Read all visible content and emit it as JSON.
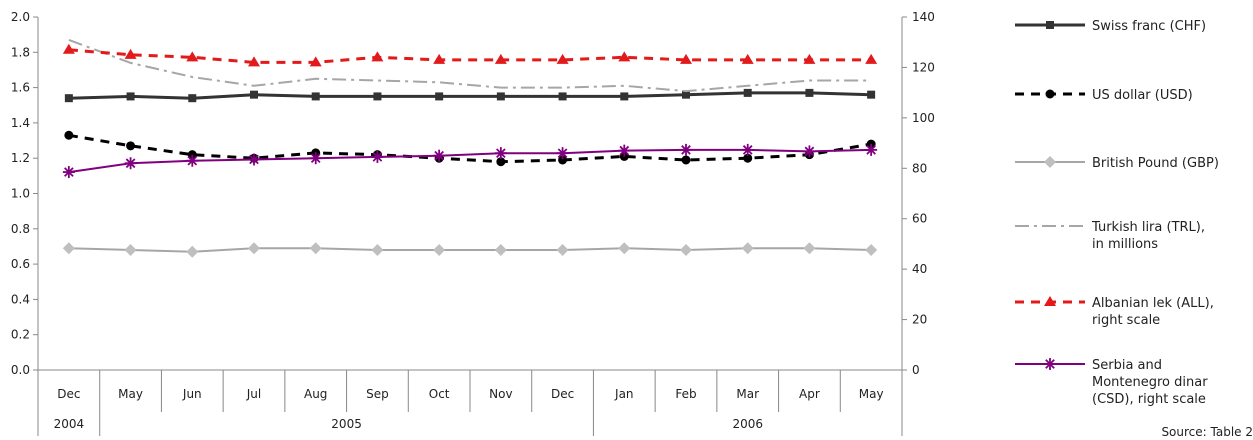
{
  "chart_data": {
    "type": "line",
    "categories": [
      "Dec",
      "May",
      "Jun",
      "Jul",
      "Aug",
      "Sep",
      "Oct",
      "Nov",
      "Dec",
      "Jan",
      "Feb",
      "Mar",
      "Apr",
      "May"
    ],
    "year_groups": [
      {
        "label": "2004",
        "start": 0,
        "end": 0
      },
      {
        "label": "2005",
        "start": 1,
        "end": 8
      },
      {
        "label": "2006",
        "start": 9,
        "end": 13
      }
    ],
    "y_left": {
      "min": 0,
      "max": 2.0,
      "ticks": [
        "0.0",
        "0.2",
        "0.4",
        "0.6",
        "0.8",
        "1.0",
        "1.2",
        "1.4",
        "1.6",
        "1.8",
        "2.0"
      ]
    },
    "y_right": {
      "min": 0,
      "max": 140,
      "ticks": [
        "0",
        "20",
        "40",
        "60",
        "80",
        "100",
        "120",
        "140"
      ]
    },
    "grid": false,
    "legend_position": "right",
    "source_note": "Source: Table 2",
    "series": [
      {
        "name": "Swiss franc (CHF)",
        "axis": "left",
        "color": "#333333",
        "style": "solid",
        "marker": "square",
        "values": [
          1.54,
          1.55,
          1.54,
          1.56,
          1.55,
          1.55,
          1.55,
          1.55,
          1.55,
          1.55,
          1.56,
          1.57,
          1.57,
          1.56
        ]
      },
      {
        "name": "US dollar (USD)",
        "axis": "left",
        "color": "#000000",
        "style": "dash",
        "marker": "circle",
        "values": [
          1.33,
          1.27,
          1.22,
          1.2,
          1.23,
          1.22,
          1.2,
          1.18,
          1.19,
          1.21,
          1.19,
          1.2,
          1.22,
          1.28
        ]
      },
      {
        "name": "British Pound  (GBP)",
        "axis": "left",
        "color": "#a6a6a6",
        "style": "solid",
        "marker": "diamond",
        "values": [
          0.69,
          0.68,
          0.67,
          0.69,
          0.69,
          0.68,
          0.68,
          0.68,
          0.68,
          0.69,
          0.68,
          0.69,
          0.69,
          0.68
        ]
      },
      {
        "name": "Turkish lira (TRL), in millions",
        "axis": "left",
        "color": "#a6a6a6",
        "style": "dashdot",
        "marker": "none",
        "values": [
          1.87,
          1.74,
          1.66,
          1.61,
          1.65,
          1.64,
          1.63,
          1.6,
          1.6,
          1.61,
          1.58,
          1.61,
          1.64,
          1.64
        ]
      },
      {
        "name": "Albanian lek (ALL), right scale",
        "axis": "right",
        "color": "#e31a1c",
        "style": "dash",
        "marker": "triangle",
        "values": [
          127,
          125,
          124,
          122,
          122,
          124,
          123,
          123,
          123,
          124,
          123,
          123,
          123,
          123
        ]
      },
      {
        "name": "Serbia and Montenegro dinar (CSD), right scale",
        "axis": "right",
        "color": "#800080",
        "style": "solid",
        "marker": "asterisk",
        "values": [
          78.5,
          82,
          83,
          83.5,
          84,
          84.5,
          85,
          86,
          86,
          87,
          87.3,
          87.3,
          86.7,
          87.3
        ]
      }
    ]
  }
}
